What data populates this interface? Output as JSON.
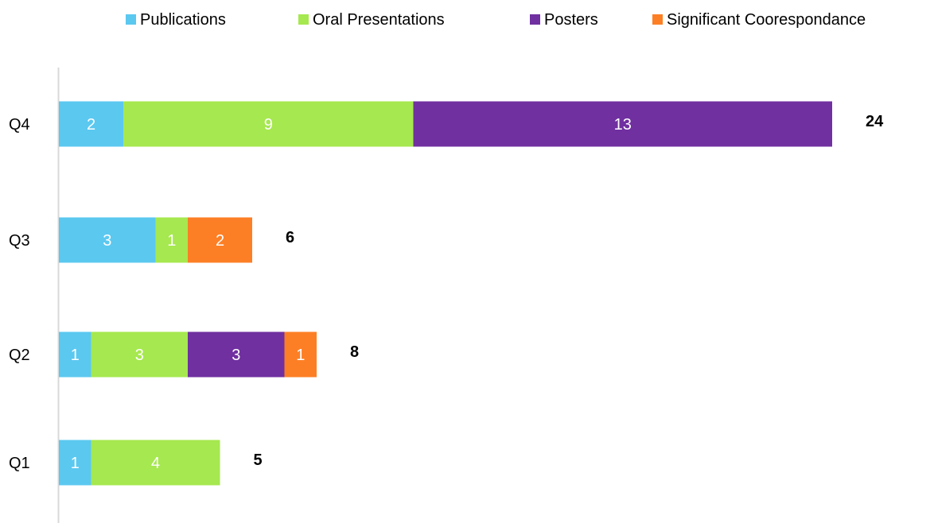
{
  "chart_data": {
    "type": "bar",
    "orientation": "horizontal",
    "stacked": true,
    "title": "",
    "xlabel": "",
    "ylabel": "",
    "categories": [
      "Q1",
      "Q2",
      "Q3",
      "Q4"
    ],
    "series": [
      {
        "name": "Publications",
        "values": [
          1,
          1,
          3,
          2
        ],
        "color": "#5bc8f0"
      },
      {
        "name": "Oral Presentations",
        "values": [
          4,
          3,
          1,
          9
        ],
        "color": "#a6e84f"
      },
      {
        "name": "Posters",
        "values": [
          0,
          3,
          0,
          13
        ],
        "color": "#7030a0"
      },
      {
        "name": "Significant Coorespondance",
        "values": [
          0,
          1,
          2,
          0
        ],
        "color": "#fd7f25"
      }
    ],
    "totals": [
      5,
      8,
      6,
      24
    ],
    "xlim": [
      0,
      24
    ],
    "grid": false,
    "legend_position": "top",
    "show_value_labels": true,
    "value_label_color": "#ffffff",
    "axis_color": "#d9d9d9"
  }
}
